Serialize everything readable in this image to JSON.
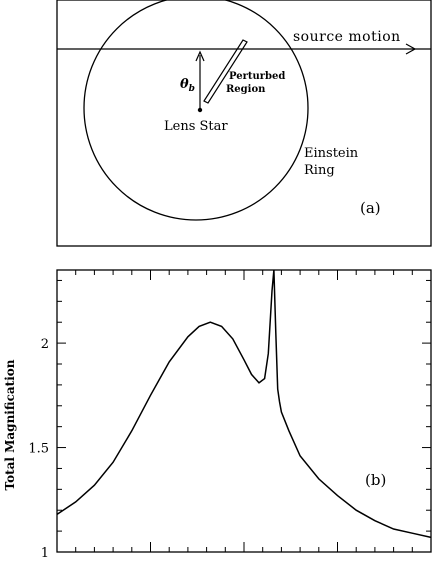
{
  "panel_a": {
    "source_motion_label": "source motion",
    "theta_symbol": "θ",
    "theta_subscript": "b",
    "perturbed_line1": "Perturbed",
    "perturbed_line2": "Region",
    "lens_star_label": "Lens Star",
    "einstein_line1": "Einstein",
    "einstein_line2": "Ring",
    "panel_tag": "(a)"
  },
  "panel_b": {
    "panel_tag": "(b)"
  },
  "chart_data": {
    "type": "line",
    "ylabel": "Total Magnification",
    "xlabel": "",
    "ylim": [
      1,
      2.35
    ],
    "xlim": [
      0,
      1
    ],
    "y_ticks": [
      "1",
      "1.5",
      "2"
    ],
    "x_tick_labels_partially_visible": true,
    "series": [
      {
        "x": [
          0.0,
          0.05,
          0.1,
          0.15,
          0.2,
          0.25,
          0.3,
          0.35,
          0.38,
          0.41,
          0.44,
          0.47,
          0.5,
          0.52,
          0.54,
          0.555,
          0.565,
          0.575,
          0.58,
          0.585,
          0.59,
          0.595,
          0.6,
          0.62,
          0.65,
          0.7,
          0.75,
          0.8,
          0.85,
          0.9,
          0.95,
          1.0
        ],
        "y": [
          1.18,
          1.24,
          1.32,
          1.43,
          1.58,
          1.75,
          1.91,
          2.03,
          2.08,
          2.1,
          2.08,
          2.02,
          1.92,
          1.85,
          1.81,
          1.83,
          1.95,
          2.25,
          2.35,
          2.05,
          1.78,
          1.72,
          1.67,
          1.58,
          1.46,
          1.35,
          1.27,
          1.2,
          1.15,
          1.11,
          1.09,
          1.07
        ]
      }
    ]
  }
}
